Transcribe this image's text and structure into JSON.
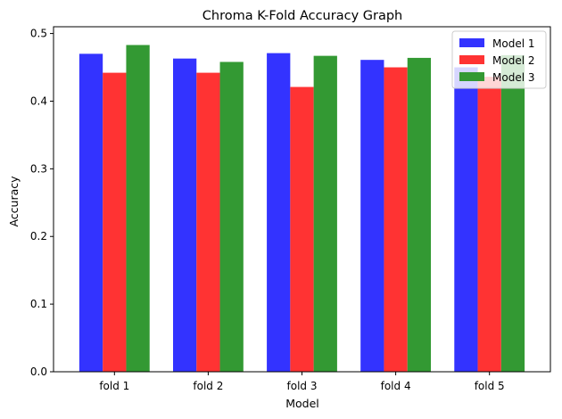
{
  "chart_data": {
    "type": "bar",
    "title": "Chroma K-Fold Accuracy Graph",
    "xlabel": "Model",
    "ylabel": "Accuracy",
    "categories": [
      "fold 1",
      "fold 2",
      "fold 3",
      "fold 4",
      "fold 5"
    ],
    "ylim": [
      0,
      0.51
    ],
    "yticks": [
      0.0,
      0.1,
      0.2,
      0.3,
      0.4,
      0.5
    ],
    "grid": false,
    "legend_position": "top-right",
    "series": [
      {
        "name": "Model 1",
        "color": "#3333ff",
        "values": [
          0.47,
          0.463,
          0.471,
          0.461,
          0.45
        ]
      },
      {
        "name": "Model 2",
        "color": "#ff3333",
        "values": [
          0.442,
          0.442,
          0.421,
          0.45,
          0.436
        ]
      },
      {
        "name": "Model 3",
        "color": "#339933",
        "values": [
          0.483,
          0.458,
          0.467,
          0.464,
          0.468
        ]
      }
    ]
  }
}
